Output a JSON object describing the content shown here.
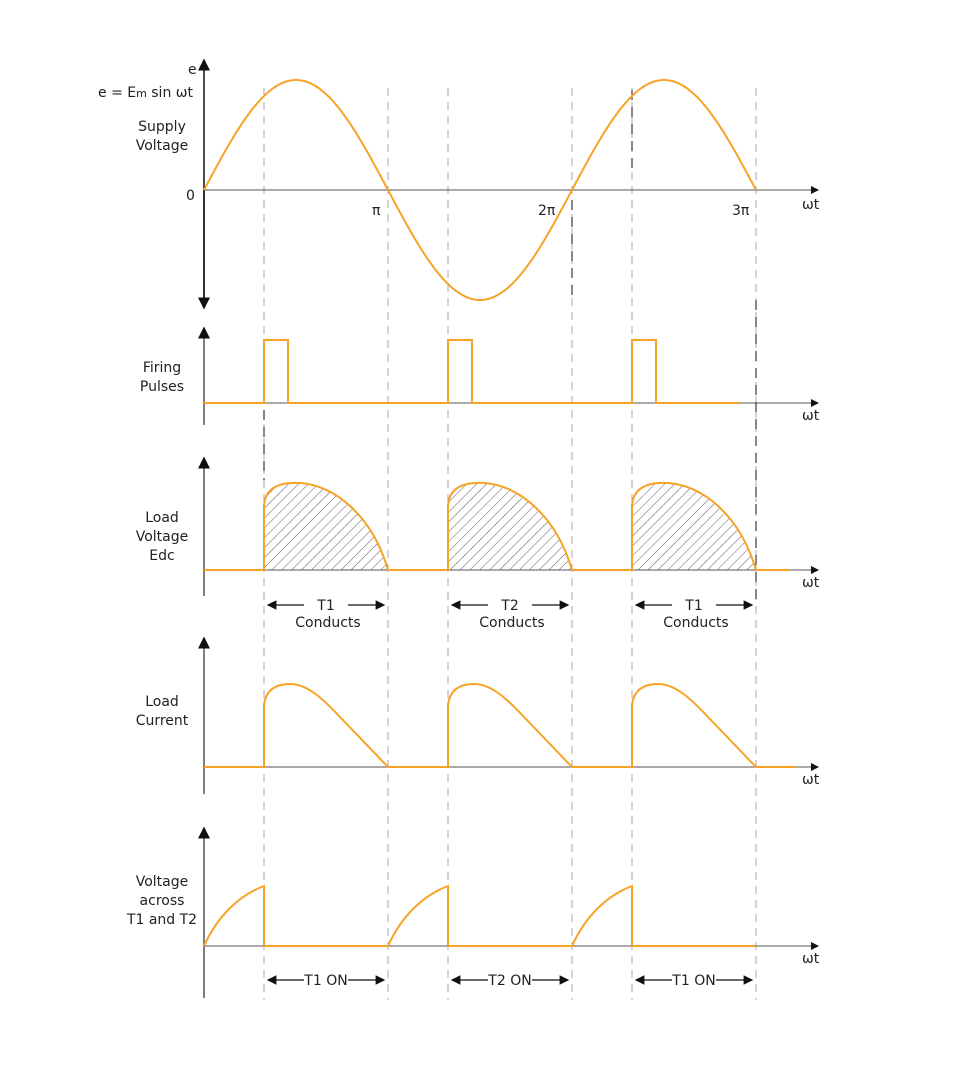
{
  "colors": {
    "waveform": "#f7a325",
    "axis": "#111111",
    "grid": "#aaaaaa",
    "hatch": "#333333"
  },
  "top": {
    "axis_label": "e",
    "equation": "e = Em sin ωt",
    "label_lines": [
      "Supply",
      "Voltage"
    ],
    "zero": "0",
    "ticks": [
      "π",
      "2π",
      "3π"
    ]
  },
  "x_axis_label": "ωt",
  "panels": [
    {
      "id": "firing",
      "label_lines": [
        "Firing",
        "Pulses"
      ]
    },
    {
      "id": "load-voltage",
      "label_lines": [
        "Load",
        "Voltage",
        "Edc"
      ],
      "intervals": [
        [
          "T1",
          "Conducts"
        ],
        [
          "T2",
          "Conducts"
        ],
        [
          "T1",
          "Conducts"
        ]
      ]
    },
    {
      "id": "load-current",
      "label_lines": [
        "Load",
        "Current"
      ]
    },
    {
      "id": "thyristor-voltage",
      "label_lines": [
        "Voltage",
        "across",
        "T1 and T2"
      ],
      "intervals": [
        "T1 ON",
        "T2 ON",
        "T1 ON"
      ]
    }
  ]
}
